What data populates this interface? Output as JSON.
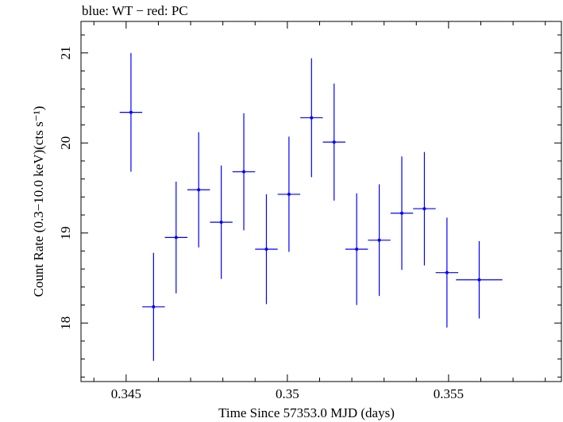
{
  "header": {
    "label": "blue: WT − red: PC"
  },
  "chart_data": {
    "type": "scatter",
    "title": "blue: WT − red: PC",
    "xlabel": "Time Since 57353.0 MJD (days)",
    "ylabel": "Count Rate (0.3−10.0 keV)(cts s⁻¹)",
    "xlim": [
      0.3436,
      0.3585
    ],
    "ylim": [
      17.35,
      21.35
    ],
    "xticks": [
      0.345,
      0.35,
      0.355
    ],
    "xtick_labels": [
      "0.345",
      "0.35",
      "0.355"
    ],
    "yticks": [
      18,
      19,
      20,
      21
    ],
    "ytick_labels": [
      "18",
      "19",
      "20",
      "21"
    ],
    "grid": false,
    "series": [
      {
        "name": "WT",
        "color": "#0000ff",
        "points": [
          {
            "x": 0.34515,
            "y": 20.34,
            "xerr": 0.00035,
            "yerr": 0.66
          },
          {
            "x": 0.34585,
            "y": 18.18,
            "xerr": 0.00035,
            "yerr": 0.6
          },
          {
            "x": 0.34655,
            "y": 18.95,
            "xerr": 0.00035,
            "yerr": 0.62
          },
          {
            "x": 0.34725,
            "y": 19.48,
            "xerr": 0.00035,
            "yerr": 0.64
          },
          {
            "x": 0.34795,
            "y": 19.12,
            "xerr": 0.00035,
            "yerr": 0.63
          },
          {
            "x": 0.34865,
            "y": 19.68,
            "xerr": 0.00035,
            "yerr": 0.65
          },
          {
            "x": 0.34935,
            "y": 18.82,
            "xerr": 0.00035,
            "yerr": 0.61
          },
          {
            "x": 0.35005,
            "y": 19.43,
            "xerr": 0.00035,
            "yerr": 0.64
          },
          {
            "x": 0.35075,
            "y": 20.28,
            "xerr": 0.00035,
            "yerr": 0.66
          },
          {
            "x": 0.35145,
            "y": 20.01,
            "xerr": 0.00035,
            "yerr": 0.65
          },
          {
            "x": 0.35215,
            "y": 18.82,
            "xerr": 0.00035,
            "yerr": 0.62
          },
          {
            "x": 0.35285,
            "y": 18.92,
            "xerr": 0.00035,
            "yerr": 0.62
          },
          {
            "x": 0.35355,
            "y": 19.22,
            "xerr": 0.00035,
            "yerr": 0.63
          },
          {
            "x": 0.35425,
            "y": 19.27,
            "xerr": 0.00035,
            "yerr": 0.63
          },
          {
            "x": 0.35495,
            "y": 18.56,
            "xerr": 0.00035,
            "yerr": 0.61
          },
          {
            "x": 0.35595,
            "y": 18.48,
            "xerr": 0.00072,
            "yerr": 0.43
          }
        ]
      }
    ]
  }
}
